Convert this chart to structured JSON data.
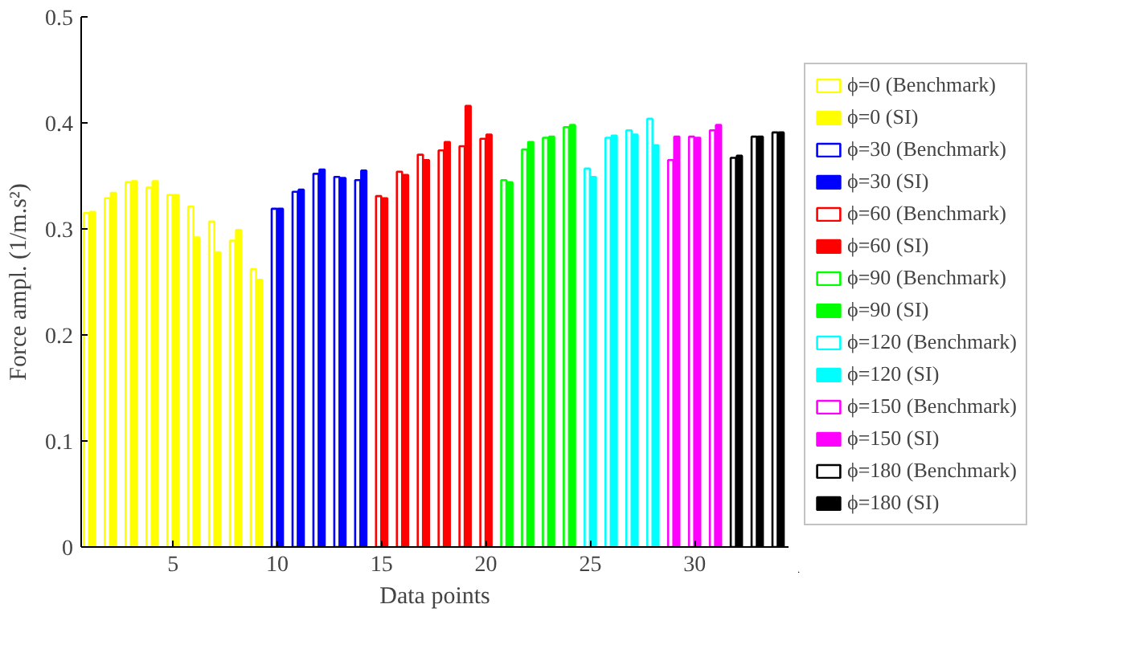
{
  "chart_data": {
    "type": "bar",
    "xlabel": "Data points",
    "ylabel": "Force ampl. (1/m.s²)",
    "xlim": [
      0.6,
      34.5
    ],
    "ylim": [
      0,
      0.5
    ],
    "xticks": [
      5,
      10,
      15,
      20,
      25,
      30
    ],
    "yticks": [
      0,
      0.1,
      0.2,
      0.3,
      0.4,
      0.5
    ],
    "grid": false,
    "legend": "right",
    "series": [
      {
        "name": "ϕ=0 (Benchmark)",
        "color": "#ffff00",
        "colors": [
          "#ffffff",
          "#ffffff",
          "#ffffff",
          "#ffffff",
          "#ffffff",
          "#ffffff",
          "#ffffff",
          "#ffffff",
          "#ffffff"
        ],
        "x": [
          1,
          2,
          3,
          4,
          5,
          6,
          7,
          8,
          9
        ],
        "values": [
          0.315,
          0.329,
          0.344,
          0.339,
          0.332,
          0.321,
          0.307,
          0.289,
          0.262
        ]
      },
      {
        "name": "ϕ=0 (SI)",
        "color": "#ffff00",
        "x": [
          1,
          2,
          3,
          4,
          5,
          6,
          7,
          8,
          9
        ],
        "values": [
          0.316,
          0.334,
          0.345,
          0.345,
          0.332,
          0.292,
          0.278,
          0.299,
          0.252
        ]
      },
      {
        "name": "ϕ=30 (Benchmark)",
        "color": "#0000ff",
        "colors": [
          "#ffffff",
          "#ffffff",
          "#ffffff",
          "#ffffff",
          "#ffffff"
        ],
        "x": [
          10,
          11,
          12,
          13,
          14
        ],
        "values": [
          0.319,
          0.335,
          0.352,
          0.349,
          0.346
        ]
      },
      {
        "name": "ϕ=30 (SI)",
        "color": "#0000ff",
        "x": [
          10,
          11,
          12,
          13,
          14
        ],
        "values": [
          0.319,
          0.337,
          0.356,
          0.348,
          0.355
        ]
      },
      {
        "name": "ϕ=60 (Benchmark)",
        "color": "#ff0000",
        "colors": [
          "#ffffff",
          "#ffffff",
          "#ffffff",
          "#ffffff",
          "#ffffff",
          "#ffffff"
        ],
        "x": [
          15,
          16,
          17,
          18,
          19,
          20
        ],
        "values": [
          0.331,
          0.354,
          0.37,
          0.374,
          0.378,
          0.385
        ]
      },
      {
        "name": "ϕ=60 (SI)",
        "color": "#ff0000",
        "x": [
          15,
          16,
          17,
          18,
          19,
          20
        ],
        "values": [
          0.329,
          0.351,
          0.365,
          0.382,
          0.416,
          0.389
        ]
      },
      {
        "name": "ϕ=90 (Benchmark)",
        "color": "#00ff00",
        "colors": [
          "#ffffff",
          "#ffffff",
          "#ffffff",
          "#ffffff"
        ],
        "x": [
          21,
          22,
          23,
          24
        ],
        "values": [
          0.346,
          0.375,
          0.386,
          0.396
        ]
      },
      {
        "name": "ϕ=90 (SI)",
        "color": "#00ff00",
        "x": [
          21,
          22,
          23,
          24
        ],
        "values": [
          0.344,
          0.382,
          0.387,
          0.398
        ]
      },
      {
        "name": "ϕ=120 (Benchmark)",
        "color": "#00ffff",
        "colors": [
          "#ffffff",
          "#ffffff",
          "#ffffff",
          "#ffffff"
        ],
        "x": [
          25,
          26,
          27,
          28
        ],
        "values": [
          0.357,
          0.386,
          0.393,
          0.404
        ]
      },
      {
        "name": "ϕ=120 (SI)",
        "color": "#00ffff",
        "x": [
          25,
          26,
          27,
          28
        ],
        "values": [
          0.349,
          0.388,
          0.389,
          0.379
        ]
      },
      {
        "name": "ϕ=150 (Benchmark)",
        "color": "#ff00ff",
        "colors": [
          "#ffffff",
          "#ffffff",
          "#ffffff"
        ],
        "x": [
          29,
          30,
          31
        ],
        "values": [
          0.365,
          0.387,
          0.393
        ]
      },
      {
        "name": "ϕ=150 (SI)",
        "color": "#ff00ff",
        "x": [
          29,
          30,
          31
        ],
        "values": [
          0.387,
          0.386,
          0.398
        ]
      },
      {
        "name": "ϕ=180 (Benchmark)",
        "color": "#000000",
        "colors": [
          "#ffffff",
          "#ffffff",
          "#ffffff"
        ],
        "x": [
          32,
          33,
          34
        ],
        "values": [
          0.367,
          0.387,
          0.391
        ]
      },
      {
        "name": "ϕ=180 (SI)",
        "color": "#000000",
        "x": [
          32,
          33,
          34
        ],
        "values": [
          0.369,
          0.387,
          0.391
        ]
      }
    ]
  }
}
